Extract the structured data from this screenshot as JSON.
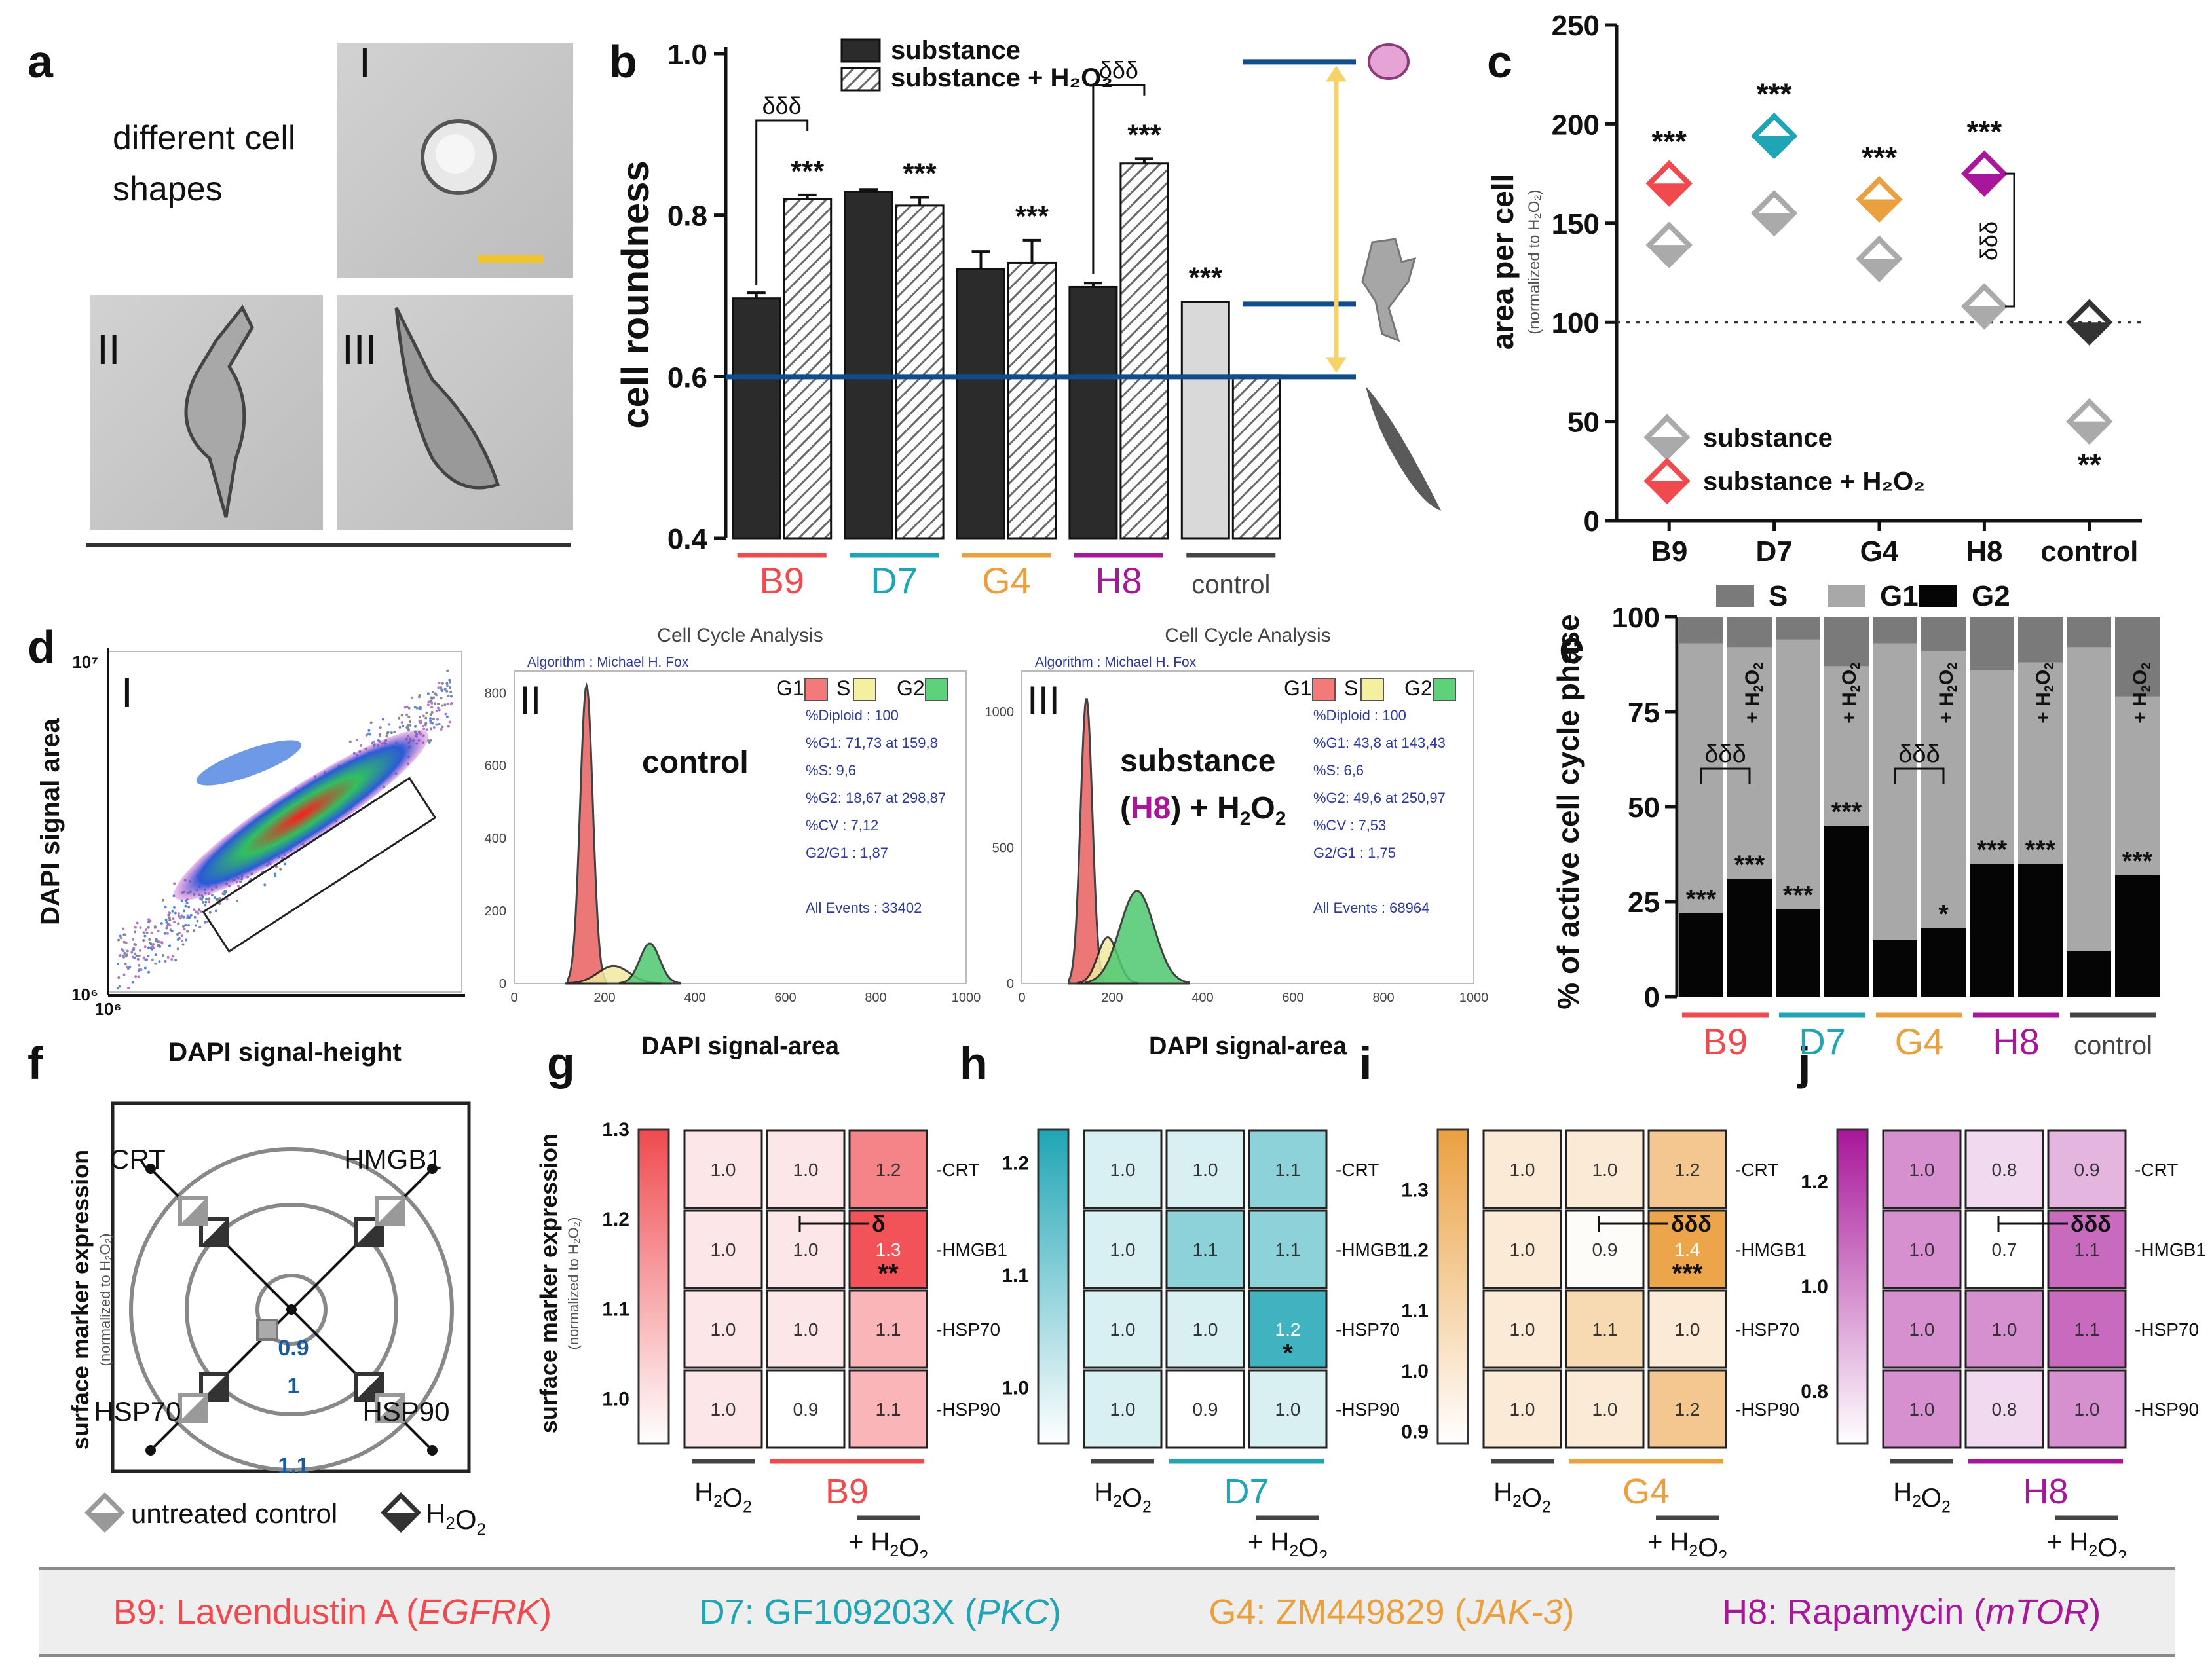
{
  "colors": {
    "B9": "#f04a4f",
    "D7": "#1fa5b5",
    "G4": "#eba040",
    "H8": "#a8169a",
    "control": "#444444",
    "bar_dark": "#2b2b2b",
    "bar_light": "#d9d9d9",
    "line_blue": "#0f4d8c",
    "arrow_yellow": "#f5d36a",
    "stats_blue": "#2e3a9a"
  },
  "panel_letters": [
    "a",
    "b",
    "c",
    "d",
    "e",
    "f",
    "g",
    "h",
    "i",
    "j"
  ],
  "panel_a": {
    "title": "different cell\nshapes",
    "labels": [
      "I",
      "II",
      "III"
    ]
  },
  "panel_d": {
    "I": "I",
    "II": "II",
    "III": "III"
  },
  "chart_data": [
    {
      "id": "b",
      "type": "bar",
      "ylabel": "cell roundness",
      "ylim": [
        0.4,
        1.0
      ],
      "yticks": [
        "0.4",
        "0.6",
        "0.8",
        "1.0"
      ],
      "categories": [
        "B9",
        "D7",
        "G4",
        "H8",
        "control"
      ],
      "series": [
        {
          "name": "substance",
          "values": [
            0.697,
            0.829,
            0.733,
            0.711,
            0.693
          ],
          "errors": [
            0.007,
            0.003,
            0.022,
            0.005,
            0.0
          ]
        },
        {
          "name": "substance + H2O2",
          "values": [
            0.82,
            0.812,
            0.741,
            0.864,
            0.602
          ],
          "errors": [
            0.005,
            0.01,
            0.028,
            0.006,
            0.0
          ]
        }
      ],
      "annotations": [
        {
          "text": "***",
          "cat": "B9",
          "series": 1
        },
        {
          "text": "***",
          "cat": "D7",
          "series": 1
        },
        {
          "text": "***",
          "cat": "G4",
          "series": 1
        },
        {
          "text": "***",
          "cat": "H8",
          "series": 1
        },
        {
          "text": "***",
          "cat": "control",
          "series": 0
        },
        {
          "text": "δδδ",
          "cat": "B9",
          "type": "bracket"
        },
        {
          "text": "δδδ",
          "cat": "H8",
          "type": "bracket"
        }
      ],
      "reference_lines": [
        0.99,
        0.69,
        0.6
      ],
      "legend": [
        "substance",
        "substance + H₂O₂"
      ],
      "category_labels": [
        "B9",
        "D7",
        "G4",
        "H8",
        "control"
      ]
    },
    {
      "id": "c",
      "type": "scatter",
      "ylabel": "area per cell",
      "ylabel_sub": "(normalized to H₂O₂)",
      "ylim": [
        0,
        250
      ],
      "yticks": [
        "0",
        "50",
        "100",
        "150",
        "200",
        "250"
      ],
      "categories": [
        "B9",
        "D7",
        "G4",
        "H8",
        "control"
      ],
      "series": [
        {
          "name": "substance",
          "values": [
            139,
            155,
            132,
            108,
            50
          ]
        },
        {
          "name": "substance + H2O2",
          "values": [
            170,
            194,
            162,
            175,
            100
          ]
        }
      ],
      "reference_line": 100,
      "annotations": [
        "***",
        "***",
        "***",
        "***",
        "**",
        "δδδ"
      ],
      "legend": [
        "substance",
        "substance + H₂O₂"
      ]
    },
    {
      "id": "d",
      "type": "histogram",
      "subpanels": [
        {
          "title": "",
          "xlabel": "DAPI signal-height",
          "ylabel": "DAPI signal area",
          "x_tick": "10⁶",
          "y_ticks": [
            "10⁷",
            "10⁶"
          ]
        },
        {
          "title": "Cell Cycle Analysis",
          "algorithm": "Algorithm : Michael H. Fox",
          "label": "control",
          "stats": [
            "%Diploid : 100",
            "%G1: 71,73 at 159,8",
            "%S: 9,6",
            "%G2: 18,67 at 298,87",
            "%CV : 7,12",
            "G2/G1 : 1,87",
            "All Events : 33402"
          ],
          "yticks": [
            "0",
            "200",
            "400",
            "600",
            "800"
          ],
          "xticks": [
            "0",
            "200",
            "400",
            "600",
            "800",
            "1000"
          ],
          "xlabel": "DAPI signal-area"
        },
        {
          "title": "Cell Cycle Analysis",
          "algorithm": "Algorithm : Michael H. Fox",
          "label": "substance",
          "label2": "(H8) + H₂O₂",
          "stats": [
            "%Diploid : 100",
            "%G1: 43,8 at 143,43",
            "%S: 6,6",
            "%G2: 49,6 at 250,97",
            "%CV : 7,53",
            "G2/G1 : 1,75",
            "All Events : 68964"
          ],
          "yticks": [
            "0",
            "500",
            "1000"
          ],
          "xticks": [
            "0",
            "200",
            "400",
            "600",
            "800",
            "1000"
          ],
          "xlabel": "DAPI signal-area"
        }
      ],
      "legend": [
        "G1",
        "S",
        "G2"
      ]
    },
    {
      "id": "e",
      "type": "stacked-bar",
      "ylabel": "% of active cell cycle phase",
      "ylim": [
        0,
        100
      ],
      "yticks": [
        "0",
        "25",
        "50",
        "75",
        "100"
      ],
      "bars": [
        {
          "group": "B9",
          "h2o2": false,
          "G2": 22,
          "G1": 71,
          "S": 7
        },
        {
          "group": "B9",
          "h2o2": true,
          "G2": 31,
          "G1": 61,
          "S": 8
        },
        {
          "group": "D7",
          "h2o2": false,
          "G2": 23,
          "G1": 71,
          "S": 6
        },
        {
          "group": "D7",
          "h2o2": true,
          "G2": 45,
          "G1": 42,
          "S": 13
        },
        {
          "group": "G4",
          "h2o2": false,
          "G2": 15,
          "G1": 78,
          "S": 7
        },
        {
          "group": "G4",
          "h2o2": true,
          "G2": 18,
          "G1": 73,
          "S": 9
        },
        {
          "group": "H8",
          "h2o2": false,
          "G2": 35,
          "G1": 51,
          "S": 14
        },
        {
          "group": "H8",
          "h2o2": true,
          "G2": 35,
          "G1": 53,
          "S": 12
        },
        {
          "group": "control",
          "h2o2": false,
          "G2": 12,
          "G1": 80,
          "S": 8
        },
        {
          "group": "control",
          "h2o2": true,
          "G2": 32,
          "G1": 47,
          "S": 21
        }
      ],
      "legend": [
        "S",
        "G1",
        "G2"
      ],
      "bar_annotations": [
        "***",
        "***",
        "***",
        "***",
        "",
        "*",
        "***",
        "***",
        "",
        "***"
      ],
      "h2o2_label": "+ H₂O₂",
      "brackets": [
        "δδδ",
        "δδδ"
      ],
      "category_labels": [
        "B9",
        "D7",
        "G4",
        "H8",
        "control"
      ]
    },
    {
      "id": "f",
      "type": "radar",
      "ylabel": "surface marker expression",
      "ylabel_sub": "(normalized to H₂O₂)",
      "axes": [
        "CRT",
        "HMGB1",
        "HSP70",
        "HSP90"
      ],
      "ring_labels": [
        "0.9",
        "1",
        "1.1"
      ],
      "legend": [
        "untreated control",
        "H₂O₂"
      ]
    },
    {
      "id": "g-j",
      "type": "heatmap",
      "rows": [
        "CRT",
        "HMGB1",
        "HSP70",
        "HSP90"
      ],
      "ylabel": "surface marker expression",
      "ylabel_sub": "(normalized to H₂O₂)",
      "panels": [
        {
          "id": "g",
          "substance": "B9",
          "scale": [
            0.95,
            1.3
          ],
          "ticks": [
            "1.0",
            "1.1",
            "1.2",
            "1.3"
          ],
          "values": [
            [
              "1.0",
              "1.0",
              "1.2"
            ],
            [
              "1.0",
              "1.0",
              "1.3"
            ],
            [
              "1.0",
              "1.0",
              "1.1"
            ],
            [
              "1.0",
              "0.9",
              "1.1"
            ]
          ],
          "num": [
            [
              1.0,
              1.0,
              1.2
            ],
            [
              1.0,
              1.0,
              1.3
            ],
            [
              1.0,
              1.0,
              1.1
            ],
            [
              1.0,
              0.9,
              1.1
            ]
          ],
          "stars": {
            "1_2": "**"
          },
          "delta": "δ"
        },
        {
          "id": "h",
          "substance": "D7",
          "scale": [
            0.95,
            1.23
          ],
          "ticks": [
            "1.0",
            "1.1",
            "1.2"
          ],
          "values": [
            [
              "1.0",
              "1.0",
              "1.1"
            ],
            [
              "1.0",
              "1.1",
              "1.1"
            ],
            [
              "1.0",
              "1.0",
              "1.2"
            ],
            [
              "1.0",
              "0.9",
              "1.0"
            ]
          ],
          "num": [
            [
              1.0,
              1.0,
              1.1
            ],
            [
              1.0,
              1.1,
              1.1
            ],
            [
              1.0,
              1.0,
              1.2
            ],
            [
              1.0,
              0.9,
              1.0
            ]
          ],
          "stars": {
            "2_2": "*"
          },
          "delta": ""
        },
        {
          "id": "i",
          "substance": "G4",
          "scale": [
            0.88,
            1.4
          ],
          "ticks": [
            "0.9",
            "1.0",
            "1.1",
            "1.2",
            "1.3"
          ],
          "values": [
            [
              "1.0",
              "1.0",
              "1.2"
            ],
            [
              "1.0",
              "0.9",
              "1.4"
            ],
            [
              "1.0",
              "1.1",
              "1.0"
            ],
            [
              "1.0",
              "1.0",
              "1.2"
            ]
          ],
          "num": [
            [
              1.0,
              1.0,
              1.2
            ],
            [
              1.0,
              0.9,
              1.4
            ],
            [
              1.0,
              1.1,
              1.0
            ],
            [
              1.0,
              1.0,
              1.2
            ]
          ],
          "stars": {
            "1_2": "***"
          },
          "delta": "δδδ"
        },
        {
          "id": "j",
          "substance": "H8",
          "scale": [
            0.7,
            1.3
          ],
          "ticks": [
            "0.8",
            "1.0",
            "1.2"
          ],
          "values": [
            [
              "1.0",
              "0.8",
              "0.9"
            ],
            [
              "1.0",
              "0.7",
              "1.1"
            ],
            [
              "1.0",
              "1.0",
              "1.1"
            ],
            [
              "1.0",
              "0.8",
              "1.0"
            ]
          ],
          "num": [
            [
              1.0,
              0.8,
              0.9
            ],
            [
              1.0,
              0.7,
              1.1
            ],
            [
              1.0,
              1.0,
              1.1
            ],
            [
              1.0,
              0.8,
              1.0
            ]
          ],
          "stars": {},
          "delta": "δδδ"
        }
      ],
      "xlabel_h2o2": "H₂O₂",
      "xlabel_plus": "+ H₂O₂"
    }
  ],
  "legend_bar": [
    {
      "prefix": "B9: Lavendustin A (",
      "target": "EGFRK",
      "suffix": ")",
      "color_key": "B9"
    },
    {
      "prefix": "D7: GF109203X (",
      "target": "PKC",
      "suffix": ")",
      "color_key": "D7"
    },
    {
      "prefix": "G4: ZM449829 (",
      "target": "JAK-3",
      "suffix": ")",
      "color_key": "G4"
    },
    {
      "prefix": "H8: Rapamycin (",
      "target": "mTOR",
      "suffix": ")",
      "color_key": "H8"
    }
  ]
}
